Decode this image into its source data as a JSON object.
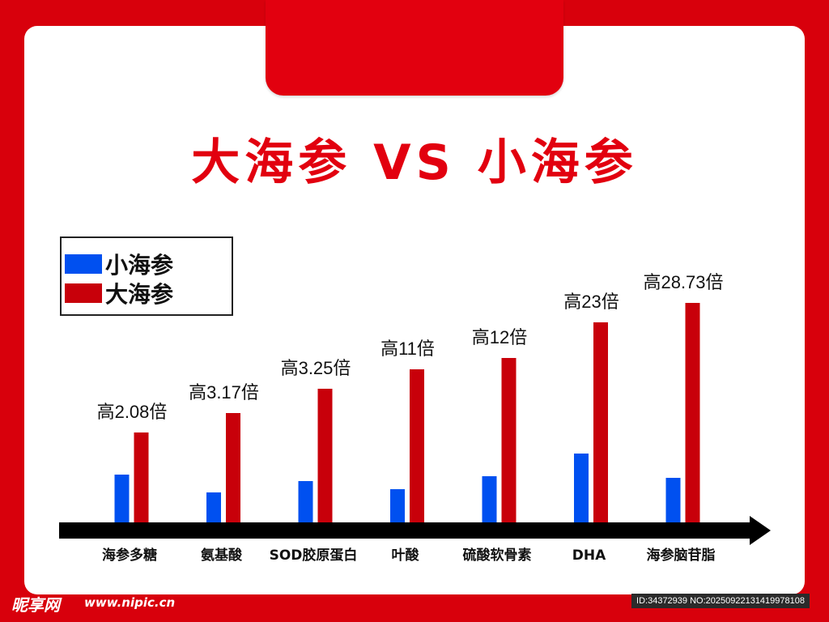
{
  "title": "大海参 VS 小海参",
  "legend": [
    {
      "label": "小海参",
      "color": "#0050f0"
    },
    {
      "label": "大海参",
      "color": "#c8000a"
    }
  ],
  "chart_data": {
    "type": "bar",
    "title": "大海参 VS 小海参",
    "categories": [
      "海参多糖",
      "氨基酸",
      "SOD胶原蛋白",
      "叶酸",
      "硫酸软骨素",
      "DHA",
      "海参脑苷脂"
    ],
    "series": [
      {
        "name": "小海参",
        "values": [
          30,
          19,
          26,
          21,
          29,
          43,
          28
        ]
      },
      {
        "name": "大海参",
        "values": [
          56,
          68,
          83,
          95,
          102,
          124,
          136
        ]
      }
    ],
    "annotations": [
      "高2.08倍",
      "高3.17倍",
      "高3.25倍",
      "高11倍",
      "高12倍",
      "高23倍",
      "高28.73倍"
    ],
    "xlabel": "",
    "ylabel": "",
    "ylim": [
      0,
      140
    ],
    "legend_position": "top-left",
    "grid": false
  },
  "watermark": {
    "brand": "昵享网",
    "url": "www.nipic.cn",
    "id_text": "ID:34372939 NO:20250922131419978108"
  }
}
